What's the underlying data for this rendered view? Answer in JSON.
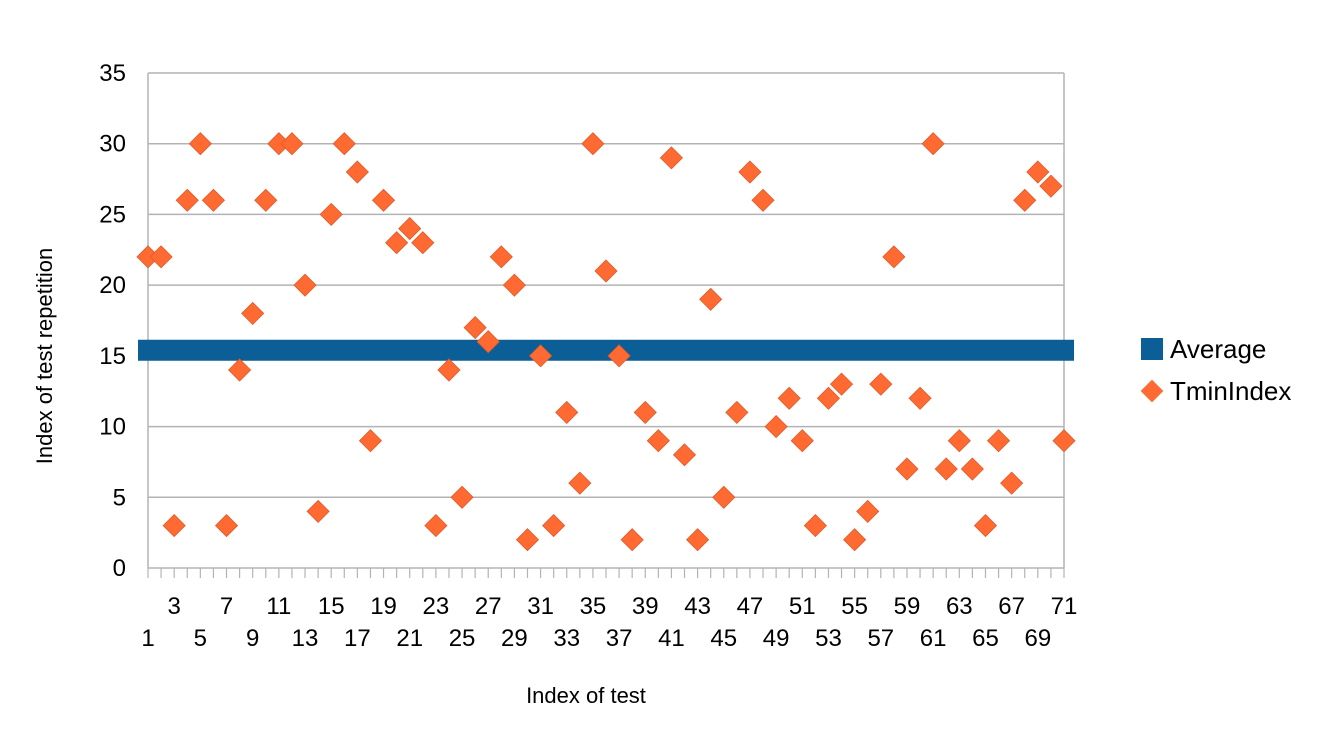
{
  "chart_data": {
    "type": "scatter",
    "xlabel": "Index of test",
    "ylabel": "Index of test repetition",
    "ylim": [
      0,
      35
    ],
    "yticks": [
      0,
      5,
      10,
      15,
      20,
      25,
      30,
      35
    ],
    "x_categories_count": 71,
    "grid": "horizontal",
    "legend": "right",
    "series": [
      {
        "name": "Average",
        "kind": "line",
        "color": "#0b5e96",
        "values": [
          15.4
        ]
      },
      {
        "name": "TminIndex",
        "kind": "scatter",
        "marker": "diamond",
        "color": "#ff6a33",
        "values": [
          22,
          22,
          3,
          26,
          30,
          26,
          3,
          14,
          18,
          26,
          30,
          30,
          20,
          4,
          25,
          30,
          28,
          9,
          26,
          23,
          24,
          23,
          3,
          14,
          5,
          17,
          16,
          22,
          20,
          2,
          15,
          3,
          11,
          6,
          30,
          21,
          15,
          2,
          11,
          9,
          29,
          8,
          2,
          19,
          5,
          11,
          28,
          26,
          10,
          12,
          9,
          3,
          12,
          13,
          2,
          4,
          13,
          22,
          7,
          12,
          30,
          7,
          9,
          7,
          3,
          9,
          6,
          26,
          28,
          27,
          9
        ]
      }
    ]
  }
}
